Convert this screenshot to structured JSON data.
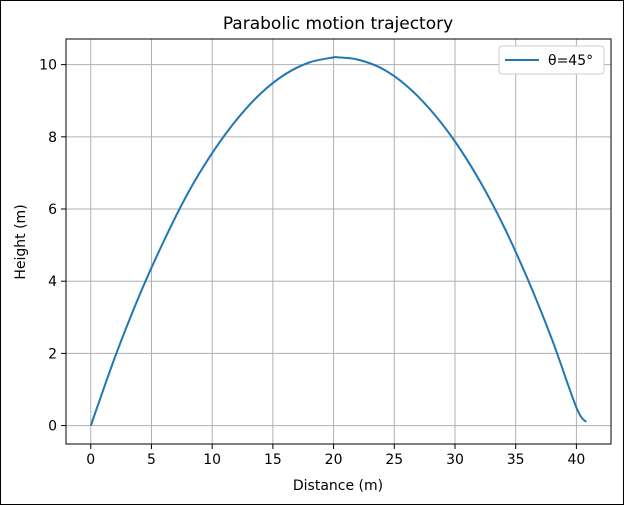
{
  "chart_data": {
    "type": "line",
    "title": "Parabolic motion trajectory",
    "xlabel": "Distance (m)",
    "ylabel": "Height (m)",
    "xlim": [
      -2.04,
      42.85
    ],
    "ylim": [
      -0.51,
      10.71
    ],
    "xticks": [
      0,
      5,
      10,
      15,
      20,
      25,
      30,
      35,
      40
    ],
    "yticks": [
      0,
      2,
      4,
      6,
      8,
      10
    ],
    "grid": true,
    "legend_position": "top-right",
    "series": [
      {
        "name": "θ=45°",
        "color": "#1f77b4",
        "x": [
          0,
          2,
          4,
          6,
          8,
          10,
          12,
          14,
          16,
          18,
          20,
          20.4,
          22,
          24,
          26,
          28,
          30,
          32,
          34,
          36,
          38,
          40,
          40.8
        ],
        "y": [
          0,
          1.9,
          3.6,
          5.1,
          6.44,
          7.55,
          8.47,
          9.2,
          9.73,
          10.06,
          10.2,
          10.2,
          10.14,
          9.89,
          9.42,
          8.74,
          7.87,
          6.8,
          5.53,
          4.05,
          2.38,
          0.5,
          0.1
        ]
      }
    ]
  }
}
